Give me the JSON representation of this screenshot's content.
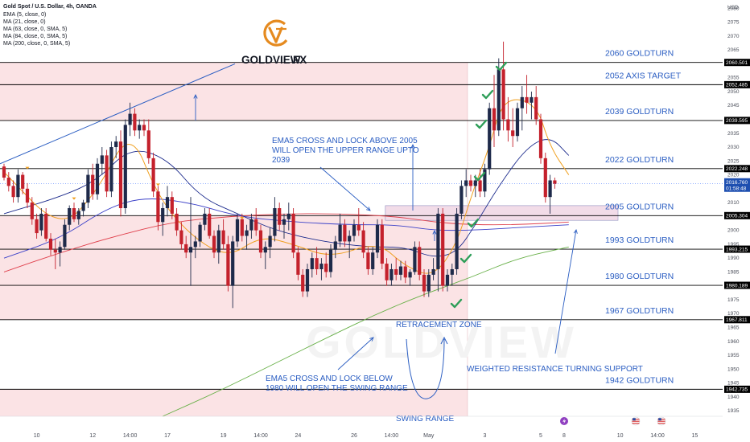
{
  "header": {
    "symbol_line": "Gold Spot / U.S. Dollar, 4h, OANDA",
    "indicators": [
      "EMA (5, close, 0)",
      "MA (21, close, 0)",
      "MA (63, close, 0, SMA, 5)",
      "MA (84, close, 0, SMA, 5)",
      "MA (200, close, 0, SMA, 5)"
    ]
  },
  "brand": {
    "name": "GOLDVIEW",
    "suffix": "FX",
    "watermark": "GOLDVIEW"
  },
  "colors": {
    "up": "#1e2a4a",
    "down": "#c4212c",
    "ema5": "#f0a020",
    "ma21": "#1b2a8c",
    "ma63": "#3b40c8",
    "ma84": "#e0404c",
    "ma200": "#68b048",
    "zone": "#fbe3e5",
    "annotation": "#2a5dc2",
    "check": "#2e9e58",
    "price_tag": "#1e4fb0"
  },
  "chart_data": {
    "type": "candlestick",
    "ylim": [
      1933,
      2083
    ],
    "y_ticks": [
      1935,
      1940,
      1945,
      1950,
      1955,
      1960,
      1965,
      1970,
      1975,
      1980,
      1985,
      1990,
      1995,
      2000,
      2005,
      2010,
      2015,
      2020,
      2025,
      2030,
      2035,
      2040,
      2045,
      2050,
      2055,
      2060,
      2065,
      2070,
      2075,
      2080
    ],
    "y_unit": "USD",
    "x_ticks": [
      {
        "label": "10",
        "i": 7
      },
      {
        "label": "12",
        "i": 19
      },
      {
        "label": "14:00",
        "i": 27
      },
      {
        "label": "17",
        "i": 35
      },
      {
        "label": "19",
        "i": 47
      },
      {
        "label": "14:00",
        "i": 55
      },
      {
        "label": "24",
        "i": 63
      },
      {
        "label": "26",
        "i": 75
      },
      {
        "label": "14:00",
        "i": 83
      },
      {
        "label": "May",
        "i": 91
      },
      {
        "label": "3",
        "i": 103
      },
      {
        "label": "5",
        "i": 115
      },
      {
        "label": "8",
        "i": 120
      },
      {
        "label": "10",
        "i": 132
      },
      {
        "label": "14:00",
        "i": 140
      },
      {
        "label": "15",
        "i": 148
      }
    ],
    "candles": [
      [
        2023,
        2024,
        2018,
        2019
      ],
      [
        2019,
        2021,
        2014,
        2016
      ],
      [
        2016,
        2018,
        2010,
        2012
      ],
      [
        2012,
        2022,
        2010,
        2020
      ],
      [
        2020,
        2021,
        2013,
        2015
      ],
      [
        2015,
        2017,
        2008,
        2010
      ],
      [
        2010,
        2012,
        2002,
        2004
      ],
      [
        2004,
        2006,
        1997,
        1999
      ],
      [
        2000,
        2008,
        1998,
        2006
      ],
      [
        2006,
        2008,
        1996,
        1997
      ],
      [
        1997,
        1999,
        1991,
        1993
      ],
      [
        1993,
        1997,
        1986,
        1992
      ],
      [
        1992,
        1996,
        1987,
        1994
      ],
      [
        1994,
        2004,
        1993,
        2002
      ],
      [
        2002,
        2009,
        2000,
        2008
      ],
      [
        2008,
        2010,
        2003,
        2004
      ],
      [
        2004,
        2008,
        2002,
        2007
      ],
      [
        2007,
        2011,
        2005,
        2010
      ],
      [
        2010,
        2022,
        2008,
        2020
      ],
      [
        2020,
        2024,
        2011,
        2013
      ],
      [
        2013,
        2026,
        2011,
        2024
      ],
      [
        2024,
        2030,
        2020,
        2027
      ],
      [
        2027,
        2029,
        2012,
        2014
      ],
      [
        2014,
        2032,
        2012,
        2030
      ],
      [
        2030,
        2034,
        2026,
        2032
      ],
      [
        2032,
        2036,
        2005,
        2008
      ],
      [
        2008,
        2040,
        2006,
        2038
      ],
      [
        2038,
        2046,
        2034,
        2042
      ],
      [
        2042,
        2044,
        2034,
        2036
      ],
      [
        2036,
        2040,
        2033,
        2038
      ],
      [
        2038,
        2040,
        2034,
        2036
      ],
      [
        2036,
        2040,
        2024,
        2026
      ],
      [
        2026,
        2028,
        2012,
        2014
      ],
      [
        2014,
        2016,
        2000,
        2003
      ],
      [
        2003,
        2010,
        1998,
        2008
      ],
      [
        2008,
        2016,
        2005,
        2012
      ],
      [
        2012,
        2014,
        2004,
        2006
      ],
      [
        2006,
        2008,
        1998,
        2000
      ],
      [
        2000,
        2003,
        1993,
        1995
      ],
      [
        1995,
        1998,
        1990,
        1992
      ],
      [
        1992,
        2012,
        1980,
        1994
      ],
      [
        1994,
        1998,
        1990,
        1996
      ],
      [
        1996,
        2003,
        1994,
        2002
      ],
      [
        2002,
        2008,
        2000,
        2006
      ],
      [
        2006,
        2008,
        1997,
        1998
      ],
      [
        1998,
        2000,
        1990,
        1992
      ],
      [
        1992,
        2002,
        1988,
        2000
      ],
      [
        2000,
        2004,
        1993,
        1995
      ],
      [
        1995,
        1998,
        1978,
        1980
      ],
      [
        1980,
        1998,
        1972,
        1996
      ],
      [
        1996,
        2006,
        1994,
        2004
      ],
      [
        2004,
        2006,
        1996,
        1998
      ],
      [
        1998,
        2002,
        1993,
        2000
      ],
      [
        2000,
        2006,
        1997,
        2004
      ],
      [
        2004,
        2008,
        1998,
        2000
      ],
      [
        2000,
        2002,
        1990,
        1992
      ],
      [
        1992,
        1996,
        1986,
        1994
      ],
      [
        1994,
        2001,
        1990,
        1998
      ],
      [
        1998,
        2012,
        1996,
        2008
      ],
      [
        2008,
        2010,
        2000,
        2002
      ],
      [
        2002,
        2006,
        1997,
        2004
      ],
      [
        2004,
        2010,
        2000,
        2006
      ],
      [
        2006,
        2008,
        1990,
        1992
      ],
      [
        1992,
        1994,
        1982,
        1984
      ],
      [
        1984,
        1986,
        1976,
        1978
      ],
      [
        1978,
        1988,
        1976,
        1986
      ],
      [
        1986,
        1992,
        1983,
        1990
      ],
      [
        1990,
        1994,
        1984,
        1986
      ],
      [
        1986,
        1990,
        1982,
        1988
      ],
      [
        1988,
        1992,
        1983,
        1985
      ],
      [
        1985,
        1995,
        1983,
        1993
      ],
      [
        1993,
        1998,
        1990,
        1996
      ],
      [
        1996,
        2006,
        1994,
        2002
      ],
      [
        2002,
        2004,
        1994,
        1996
      ],
      [
        1996,
        2000,
        1990,
        1998
      ],
      [
        1998,
        2004,
        1996,
        2002
      ],
      [
        2002,
        2008,
        1998,
        2000
      ],
      [
        2000,
        2003,
        1990,
        1992
      ],
      [
        1992,
        1994,
        1984,
        1986
      ],
      [
        1986,
        1994,
        1984,
        1992
      ],
      [
        1992,
        2004,
        1990,
        2002
      ],
      [
        2002,
        2004,
        1986,
        1988
      ],
      [
        1988,
        1990,
        1980,
        1982
      ],
      [
        1982,
        1988,
        1980,
        1986
      ],
      [
        1986,
        1990,
        1982,
        1984
      ],
      [
        1984,
        1989,
        1982,
        1987
      ],
      [
        1987,
        1989,
        1981,
        1983
      ],
      [
        1983,
        1986,
        1980,
        1985
      ],
      [
        1985,
        1996,
        1984,
        1994
      ],
      [
        1994,
        1996,
        1982,
        1984
      ],
      [
        1984,
        1986,
        1976,
        1978
      ],
      [
        1978,
        1986,
        1976,
        1984
      ],
      [
        1984,
        1990,
        1982,
        1986
      ],
      [
        1986,
        2008,
        1978,
        2006
      ],
      [
        2006,
        2008,
        1978,
        1980
      ],
      [
        1980,
        1986,
        1978,
        1984
      ],
      [
        1984,
        1988,
        1980,
        1986
      ],
      [
        1986,
        2008,
        1984,
        2006
      ],
      [
        2006,
        2018,
        2004,
        2016
      ],
      [
        2016,
        2022,
        2012,
        2018
      ],
      [
        2018,
        2020,
        2014,
        2016
      ],
      [
        2016,
        2020,
        2012,
        2018
      ],
      [
        2018,
        2022,
        2012,
        2014
      ],
      [
        2014,
        2024,
        2012,
        2022
      ],
      [
        2022,
        2046,
        2020,
        2044
      ],
      [
        2044,
        2056,
        2030,
        2036
      ],
      [
        2036,
        2062,
        2034,
        2058
      ],
      [
        2058,
        2068,
        2036,
        2040
      ],
      [
        2040,
        2048,
        2032,
        2036
      ],
      [
        2036,
        2044,
        2030,
        2034
      ],
      [
        2034,
        2046,
        2032,
        2044
      ],
      [
        2044,
        2052,
        2036,
        2048
      ],
      [
        2048,
        2056,
        2042,
        2046
      ],
      [
        2046,
        2050,
        2040,
        2048
      ],
      [
        2048,
        2052,
        2038,
        2040
      ],
      [
        2040,
        2042,
        2024,
        2026
      ],
      [
        2026,
        2028,
        2010,
        2012
      ],
      [
        2012,
        2020,
        2006,
        2018
      ],
      [
        2018,
        2019,
        2015,
        2016.8
      ]
    ],
    "moving_averages": {
      "ema5": [
        [
          0,
          2021
        ],
        [
          12,
          2000
        ],
        [
          20,
          2014
        ],
        [
          27,
          2037
        ],
        [
          33,
          2012
        ],
        [
          40,
          1998
        ],
        [
          48,
          1990
        ],
        [
          55,
          1998
        ],
        [
          62,
          1995
        ],
        [
          70,
          1990
        ],
        [
          80,
          1996
        ],
        [
          86,
          1987
        ],
        [
          92,
          1983
        ],
        [
          97,
          1995
        ],
        [
          100,
          2012
        ],
        [
          104,
          2030
        ],
        [
          107,
          2048
        ],
        [
          114,
          2046
        ],
        [
          117,
          2030
        ],
        [
          121,
          2020
        ]
      ],
      "ma21": [
        [
          0,
          2006
        ],
        [
          12,
          2012
        ],
        [
          20,
          2018
        ],
        [
          27,
          2030
        ],
        [
          35,
          2026
        ],
        [
          42,
          2012
        ],
        [
          50,
          2006
        ],
        [
          58,
          2000
        ],
        [
          68,
          1996
        ],
        [
          78,
          1994
        ],
        [
          86,
          1994
        ],
        [
          92,
          1990
        ],
        [
          97,
          1992
        ],
        [
          101,
          2002
        ],
        [
          106,
          2016
        ],
        [
          112,
          2030
        ],
        [
          117,
          2034
        ],
        [
          121,
          2027
        ]
      ],
      "ma63": [
        [
          0,
          1990
        ],
        [
          12,
          1997
        ],
        [
          22,
          2008
        ],
        [
          30,
          2012
        ],
        [
          40,
          2010
        ],
        [
          50,
          2005
        ],
        [
          62,
          2003
        ],
        [
          74,
          2002
        ],
        [
          84,
          2002
        ],
        [
          92,
          2000
        ],
        [
          100,
          2000
        ],
        [
          110,
          2001
        ],
        [
          121,
          2002
        ]
      ],
      "ma84": [
        [
          0,
          1985
        ],
        [
          12,
          1992
        ],
        [
          24,
          1998
        ],
        [
          36,
          2003
        ],
        [
          48,
          2005
        ],
        [
          60,
          2006
        ],
        [
          72,
          2006
        ],
        [
          84,
          2005
        ],
        [
          92,
          2003
        ],
        [
          100,
          2002
        ],
        [
          110,
          2002
        ],
        [
          121,
          2003
        ]
      ],
      "ma200": [
        [
          34,
          1933
        ],
        [
          46,
          1942
        ],
        [
          58,
          1952
        ],
        [
          70,
          1962
        ],
        [
          80,
          1970
        ],
        [
          90,
          1977
        ],
        [
          100,
          1983
        ],
        [
          110,
          1990
        ],
        [
          121,
          1994
        ]
      ]
    },
    "levels": [
      {
        "value": 2060.501,
        "label": "2060 GOLDTURN",
        "tag": "2060.501"
      },
      {
        "value": 2052.485,
        "label": "2052 AXIS TARGET",
        "tag": "2052.485"
      },
      {
        "value": 2039.595,
        "label": "2039 GOLDTURN",
        "tag": "2039.595"
      },
      {
        "value": 2022.248,
        "label": "2022 GOLDTURN",
        "tag": "2022.248"
      },
      {
        "value": 2005.304,
        "label": "2005 GOLDTURN",
        "tag": "2005.304"
      },
      {
        "value": 1993.215,
        "label": "1993 GOLDTURN",
        "tag": "1993.215"
      },
      {
        "value": 1980.189,
        "label": "1980 GOLDTURN",
        "tag": "1980.189"
      },
      {
        "value": 1967.811,
        "label": "1967 GOLDTURN",
        "tag": "1967.811"
      },
      {
        "value": 1942.735,
        "label": "1942 GOLDTURN",
        "tag": "1942.735"
      }
    ],
    "current_price": {
      "value": 2016.76,
      "tag": "2016.760",
      "countdown": "01:58:48"
    },
    "annotations": {
      "upper_range": [
        "EMA5 CROSS AND LOCK ABOVE 2005",
        "WILL OPEN THE UPPER RANGE UPTO",
        "2039"
      ],
      "swing_range_note": [
        "EMA5 CROSS AND LOCK BELOW",
        "1980 WILL OPEN THE SWING RANGE"
      ],
      "retracement_zone": "RETRACEMENT ZONE",
      "swing_range": "SWING RANGE",
      "weighted": "WEIGHTED RESISTANCE TURNING SUPPORT"
    }
  }
}
